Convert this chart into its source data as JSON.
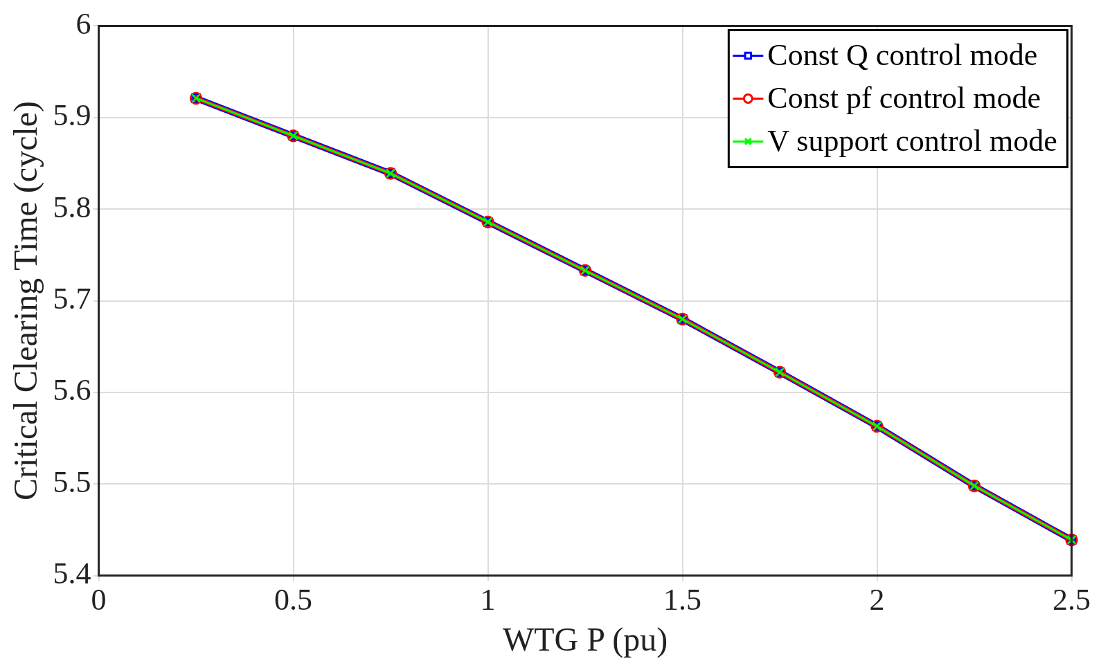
{
  "chart_data": {
    "type": "line",
    "xlabel": "WTG P (pu)",
    "ylabel": "Critical Clearing Time (cycle)",
    "x": [
      0.25,
      0.5,
      0.75,
      1,
      1.25,
      1.5,
      1.75,
      2,
      2.25,
      2.5
    ],
    "series": [
      {
        "name": "Const Q control mode",
        "color": "#0000ff",
        "marker": "square",
        "values": [
          5.921,
          5.88,
          5.839,
          5.786,
          5.733,
          5.68,
          5.622,
          5.563,
          5.498,
          5.439
        ]
      },
      {
        "name": "Const pf control mode",
        "color": "#ff0000",
        "marker": "circle",
        "values": [
          5.921,
          5.88,
          5.839,
          5.786,
          5.733,
          5.68,
          5.622,
          5.563,
          5.498,
          5.439
        ]
      },
      {
        "name": "V support control mode",
        "color": "#00ff00",
        "marker": "cross",
        "values": [
          5.921,
          5.88,
          5.839,
          5.786,
          5.733,
          5.68,
          5.622,
          5.563,
          5.498,
          5.439
        ]
      }
    ],
    "xlim": [
      0,
      2.5
    ],
    "xticks": [
      0,
      0.5,
      1,
      1.5,
      2,
      2.5
    ],
    "ylim": [
      5.4,
      6
    ],
    "yticks": [
      5.4,
      5.5,
      5.6,
      5.7,
      5.8,
      5.9,
      6
    ],
    "grid": true,
    "legend": "top right",
    "line_style": "solid"
  }
}
